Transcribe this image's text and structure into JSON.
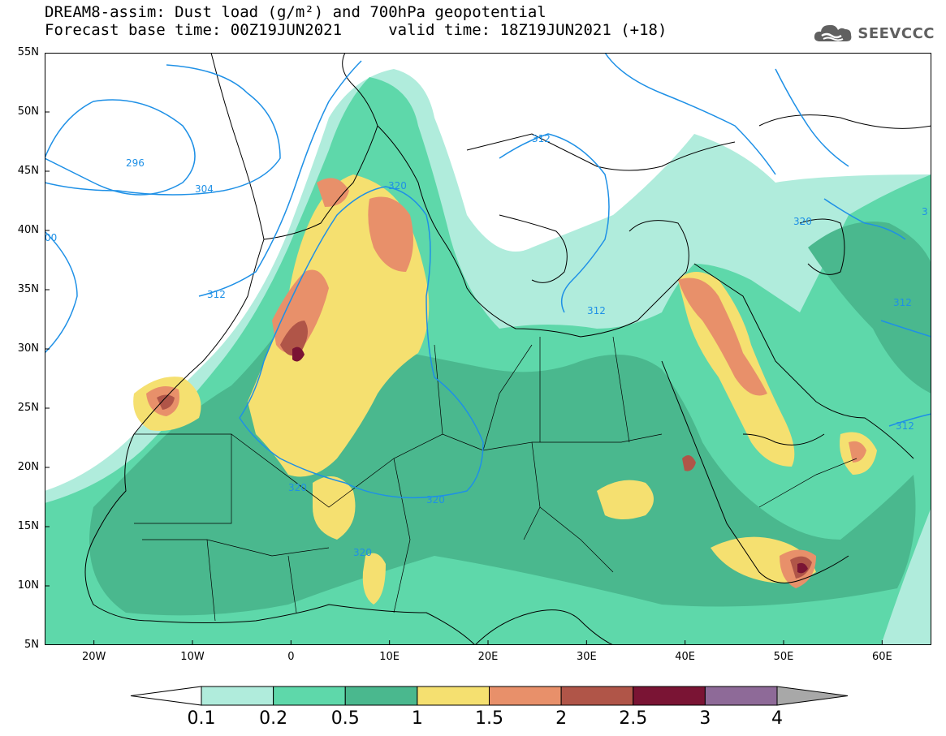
{
  "header": {
    "title_line1": "DREAM8-assim: Dust load (g/m²) and 700hPa geopotential",
    "title_line2": "Forecast base time: 00Z19JUN2021     valid time: 18Z19JUN2021 (+18)",
    "logo_text": "SEEVCCC",
    "logo_icon": "cloud-icon"
  },
  "map": {
    "lon_range": [
      -25,
      65
    ],
    "lat_range": [
      5,
      55
    ],
    "lat_ticks": [
      "55N",
      "50N",
      "45N",
      "40N",
      "35N",
      "30N",
      "25N",
      "20N",
      "15N",
      "10N",
      "5N"
    ],
    "lon_ticks": [
      "20W",
      "10W",
      "0",
      "10E",
      "20E",
      "30E",
      "40E",
      "50E",
      "60E"
    ],
    "contour_labels": [
      "296",
      "304",
      "312",
      "320",
      "312",
      "312",
      "320",
      "320",
      "320",
      "312",
      "312",
      "320",
      "3",
      "00"
    ],
    "contour_color": "#1e90e6"
  },
  "colorbar": {
    "labels": [
      "0.1",
      "0.2",
      "0.5",
      "1",
      "1.5",
      "2",
      "2.5",
      "3",
      "4"
    ],
    "colors": [
      "#ffffff",
      "#b0ecdc",
      "#5ed8aa",
      "#4ab88e",
      "#f5e070",
      "#e8906a",
      "#b05548",
      "#7a1434",
      "#8e6a98",
      "#a8a8a8"
    ]
  }
}
